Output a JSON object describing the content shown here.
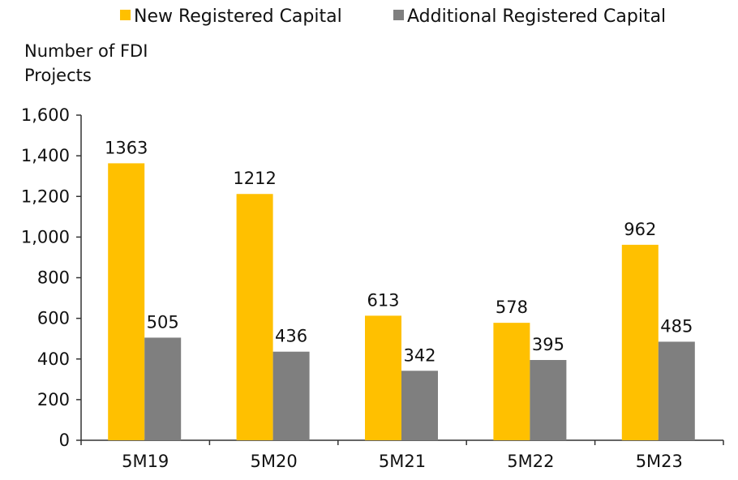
{
  "chart_data": {
    "type": "bar",
    "ylabel": "Number of FDI Projects",
    "categories": [
      "5M19",
      "5M20",
      "5M21",
      "5M22",
      "5M23"
    ],
    "series": [
      {
        "name": "New Registered Capital",
        "color": "#FFC000",
        "values": [
          1363,
          1212,
          613,
          578,
          962
        ]
      },
      {
        "name": "Additional Registered Capital",
        "color": "#7F7F7F",
        "values": [
          505,
          436,
          342,
          395,
          485
        ]
      }
    ],
    "ylim": [
      0,
      1600
    ],
    "yticks": [
      0,
      200,
      400,
      600,
      800,
      1000,
      1200,
      1400,
      1600
    ],
    "ytick_labels": [
      "0",
      "200",
      "400",
      "600",
      "800",
      "1,000",
      "1,200",
      "1,400",
      "1,600"
    ],
    "grid": false,
    "legend_position": "top",
    "data_labels": true
  }
}
